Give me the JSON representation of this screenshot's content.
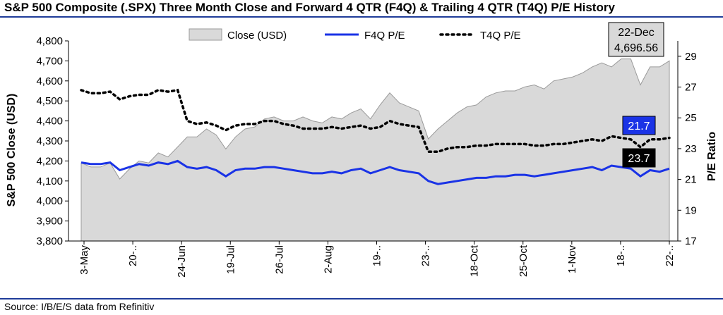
{
  "title": "S&P 500 Composite (.SPX) Three Month Close and Forward 4 QTR (F4Q) & Trailing 4 QTR (T4Q) P/E History",
  "source": "Source: I/B/E/S data from Refinitiv",
  "chart_data": {
    "type": "area",
    "title": "S&P 500 Composite (.SPX) Three Month Close and Forward 4 QTR (F4Q) & Trailing 4 QTR (T4Q) P/E History",
    "ylabel": "S&P 500 Close (USD)",
    "y2label": "P/E Ratio",
    "ylim": [
      3800,
      4800
    ],
    "y_ticks": [
      "3,800",
      "3,900",
      "4,000",
      "4,100",
      "4,200",
      "4,300",
      "4,400",
      "4,500",
      "4,600",
      "4,700",
      "4,800"
    ],
    "y2lim": [
      17,
      30
    ],
    "y2_ticks": [
      "17",
      "19",
      "21",
      "23",
      "25",
      "27",
      "29"
    ],
    "x_tick_labels": [
      "3-May",
      "20-..",
      "24-Jun",
      "19-Jul",
      "26-Jul",
      "2-Aug",
      "19-..",
      "23-..",
      "18-Oct",
      "25-Oct",
      "1-Nov",
      "18-..",
      "22-.."
    ],
    "legend": [
      "Close (USD)",
      "F4Q P/E",
      "T4Q P/E"
    ],
    "legend_position": "top",
    "annotation": {
      "date": "22-Dec",
      "value": "4,696.56"
    },
    "end_labels": {
      "f4q": "21.7",
      "t4q": "23.7"
    },
    "colors": {
      "close": "#d9d9d9",
      "f4q": "#1a33e6",
      "t4q": "#000000",
      "accent": "#1f3c99"
    },
    "series": [
      {
        "name": "Close (USD)",
        "values": [
          4190,
          4170,
          4170,
          4190,
          4110,
          4160,
          4200,
          4190,
          4240,
          4220,
          4270,
          4320,
          4320,
          4360,
          4330,
          4260,
          4320,
          4360,
          4370,
          4410,
          4420,
          4400,
          4400,
          4420,
          4400,
          4390,
          4420,
          4410,
          4440,
          4460,
          4410,
          4480,
          4540,
          4490,
          4470,
          4450,
          4310,
          4360,
          4400,
          4440,
          4470,
          4480,
          4520,
          4540,
          4550,
          4550,
          4570,
          4580,
          4560,
          4600,
          4610,
          4620,
          4640,
          4670,
          4690,
          4670,
          4710,
          4710,
          4580,
          4670,
          4670,
          4700
        ]
      },
      {
        "name": "F4Q P/E",
        "values": [
          22.1,
          22.0,
          22.0,
          22.1,
          21.6,
          21.8,
          22.0,
          21.9,
          22.1,
          22.0,
          22.2,
          21.8,
          21.7,
          21.8,
          21.6,
          21.2,
          21.6,
          21.7,
          21.7,
          21.8,
          21.8,
          21.7,
          21.6,
          21.5,
          21.4,
          21.4,
          21.5,
          21.4,
          21.6,
          21.7,
          21.4,
          21.6,
          21.8,
          21.6,
          21.5,
          21.4,
          20.9,
          20.7,
          20.8,
          20.9,
          21.0,
          21.1,
          21.1,
          21.2,
          21.2,
          21.3,
          21.3,
          21.2,
          21.3,
          21.4,
          21.5,
          21.6,
          21.7,
          21.8,
          21.6,
          21.9,
          21.8,
          21.7,
          21.2,
          21.6,
          21.5,
          21.7
        ]
      },
      {
        "name": "T4Q P/E",
        "values": [
          26.8,
          26.6,
          26.6,
          26.7,
          26.2,
          26.4,
          26.5,
          26.5,
          26.8,
          26.7,
          26.8,
          24.8,
          24.6,
          24.7,
          24.5,
          24.2,
          24.5,
          24.6,
          24.6,
          24.8,
          24.8,
          24.6,
          24.5,
          24.3,
          24.3,
          24.3,
          24.4,
          24.3,
          24.4,
          24.5,
          24.3,
          24.4,
          24.8,
          24.6,
          24.5,
          24.4,
          22.8,
          22.8,
          23.0,
          23.1,
          23.1,
          23.2,
          23.2,
          23.3,
          23.3,
          23.3,
          23.3,
          23.2,
          23.2,
          23.3,
          23.3,
          23.4,
          23.5,
          23.6,
          23.5,
          23.8,
          23.7,
          23.6,
          23.1,
          23.6,
          23.6,
          23.7
        ]
      }
    ]
  }
}
